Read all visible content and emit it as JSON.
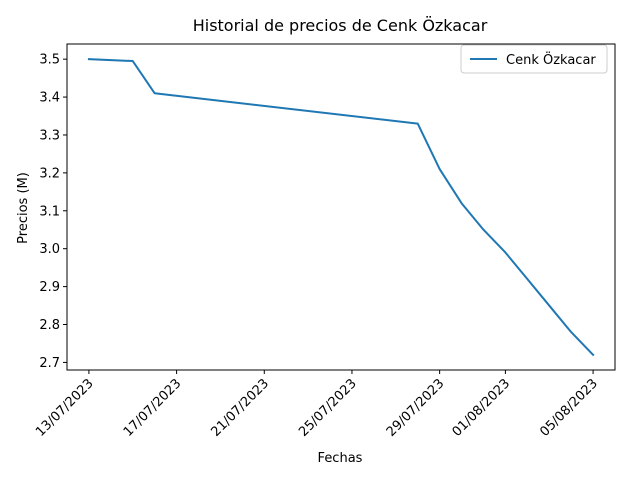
{
  "chart_data": {
    "type": "line",
    "title": "Historial de precios de Cenk Özkacar",
    "xlabel": "Fechas",
    "ylabel": "Precios (M)",
    "x_type": "date",
    "x_ticks": [
      "13/07/2023",
      "17/07/2023",
      "21/07/2023",
      "25/07/2023",
      "29/07/2023",
      "01/08/2023",
      "05/08/2023"
    ],
    "x_tick_dates": [
      "2023-07-13",
      "2023-07-17",
      "2023-07-21",
      "2023-07-25",
      "2023-07-29",
      "2023-08-01",
      "2023-08-05"
    ],
    "xlim": [
      "2023-07-12",
      "2023-08-06"
    ],
    "y_ticks": [
      2.7,
      2.8,
      2.9,
      3.0,
      3.1,
      3.2,
      3.3,
      3.4,
      3.5
    ],
    "ylim": [
      2.68,
      3.54
    ],
    "legend_position": "upper right",
    "grid": false,
    "series": [
      {
        "name": "Cenk Özkacar",
        "color": "#1f77b4",
        "x": [
          "2023-07-13",
          "2023-07-15",
          "2023-07-16",
          "2023-07-28",
          "2023-07-29",
          "2023-07-30",
          "2023-07-31",
          "2023-08-01",
          "2023-08-02",
          "2023-08-03",
          "2023-08-04",
          "2023-08-05"
        ],
        "values": [
          3.5,
          3.495,
          3.41,
          3.33,
          3.21,
          3.12,
          3.05,
          2.99,
          2.92,
          2.85,
          2.78,
          2.72
        ]
      }
    ]
  }
}
